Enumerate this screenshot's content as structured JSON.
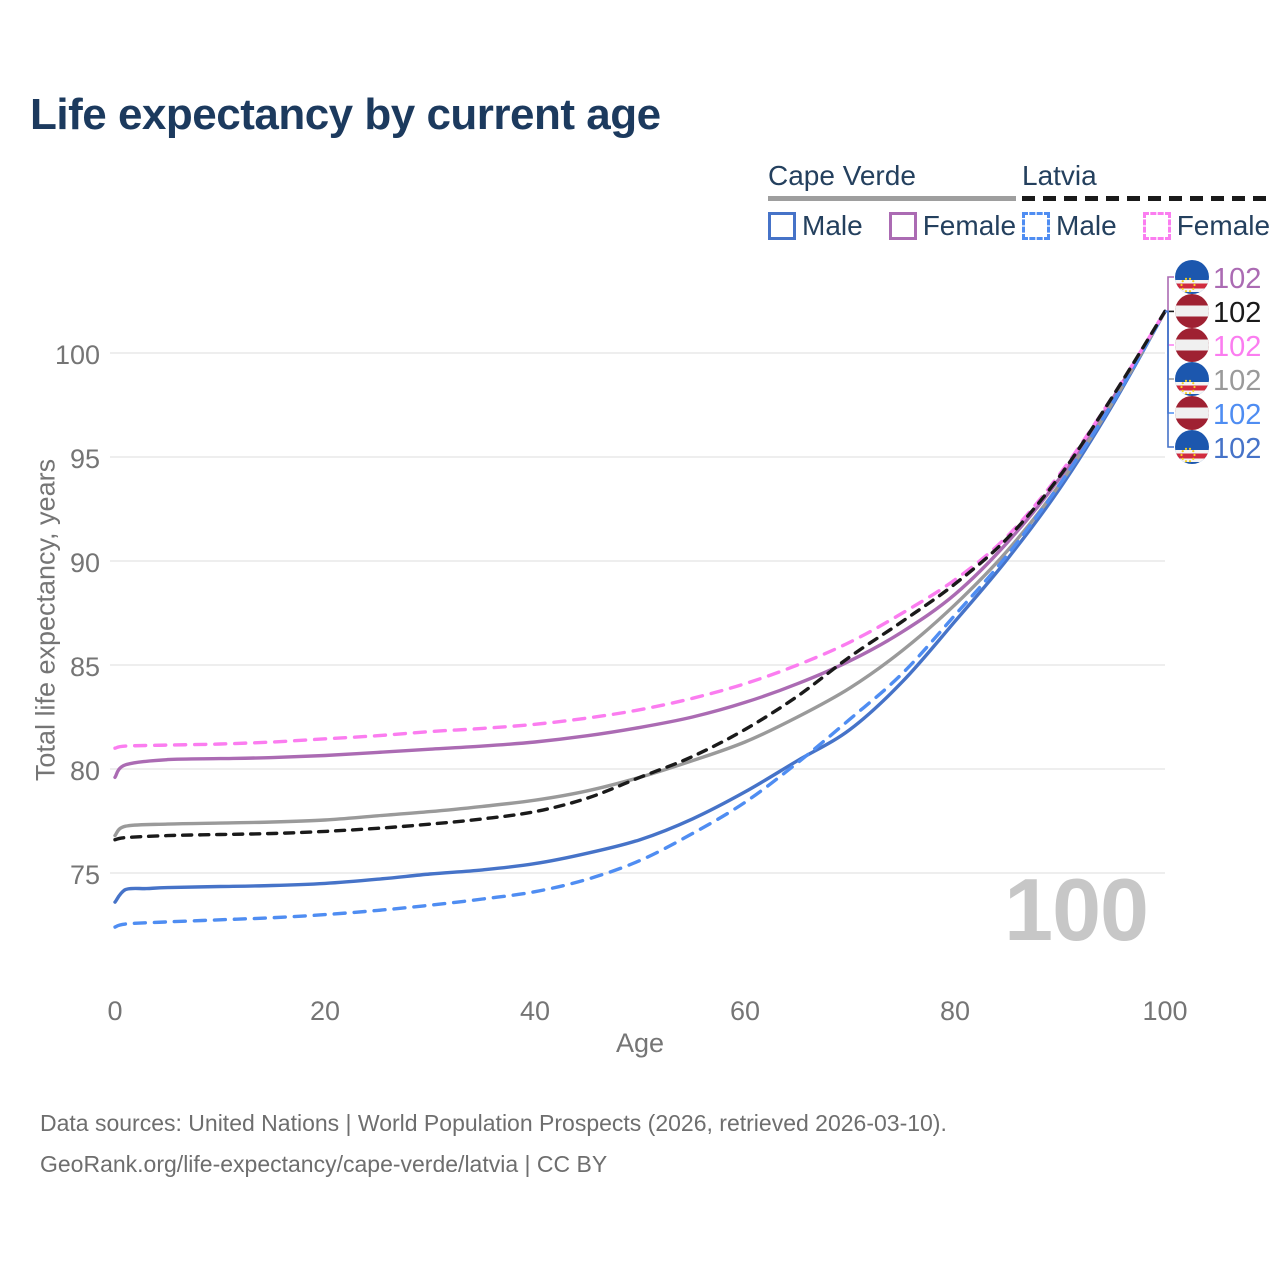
{
  "title": "Life expectancy by current age",
  "legend": {
    "groups": [
      {
        "name": "Cape Verde",
        "underline_style": "solid",
        "underline_color": "#9e9e9e",
        "items": [
          {
            "label": "Male",
            "color": "#4673c8",
            "dashed": false
          },
          {
            "label": "Female",
            "color": "#ab6bb3",
            "dashed": false
          }
        ]
      },
      {
        "name": "Latvia",
        "underline_style": "dashed",
        "underline_color": "#1a1a1a",
        "items": [
          {
            "label": "Male",
            "color": "#4f8df2",
            "dashed": true
          },
          {
            "label": "Female",
            "color": "#fb7df0",
            "dashed": true
          }
        ]
      }
    ]
  },
  "chart_data": {
    "type": "line",
    "title": "Life expectancy by current age",
    "xlabel": "Age",
    "ylabel": "Total life expectancy, years",
    "x_ticks": [
      0,
      20,
      40,
      60,
      80,
      100
    ],
    "y_ticks": [
      75,
      80,
      85,
      90,
      95,
      100
    ],
    "xlim": [
      0,
      100
    ],
    "ylim": [
      71.5,
      103.5
    ],
    "grid": "horizontal-only",
    "legend_position": "top-right",
    "watermark_age": "100",
    "series": [
      {
        "name": "Cape Verde Male",
        "country": "Cape Verde",
        "sex": "Male",
        "color": "#4673c8",
        "dashed": false,
        "points": [
          [
            0,
            73.6
          ],
          [
            1,
            74.2
          ],
          [
            3,
            74.25
          ],
          [
            5,
            74.3
          ],
          [
            10,
            74.35
          ],
          [
            15,
            74.4
          ],
          [
            20,
            74.5
          ],
          [
            25,
            74.7
          ],
          [
            30,
            74.95
          ],
          [
            35,
            75.15
          ],
          [
            40,
            75.45
          ],
          [
            45,
            75.95
          ],
          [
            50,
            76.6
          ],
          [
            55,
            77.6
          ],
          [
            60,
            78.9
          ],
          [
            65,
            80.4
          ],
          [
            70,
            81.9
          ],
          [
            75,
            84.2
          ],
          [
            80,
            87.1
          ],
          [
            85,
            90.1
          ],
          [
            90,
            93.5
          ],
          [
            95,
            97.5
          ],
          [
            100,
            102
          ]
        ]
      },
      {
        "name": "Cape Verde Female",
        "country": "Cape Verde",
        "sex": "Female",
        "color": "#ab6bb3",
        "dashed": false,
        "points": [
          [
            0,
            79.6
          ],
          [
            1,
            80.2
          ],
          [
            5,
            80.45
          ],
          [
            10,
            80.5
          ],
          [
            15,
            80.55
          ],
          [
            20,
            80.65
          ],
          [
            25,
            80.8
          ],
          [
            30,
            80.95
          ],
          [
            35,
            81.1
          ],
          [
            40,
            81.3
          ],
          [
            45,
            81.6
          ],
          [
            50,
            82.0
          ],
          [
            55,
            82.5
          ],
          [
            60,
            83.2
          ],
          [
            65,
            84.1
          ],
          [
            70,
            85.2
          ],
          [
            75,
            86.6
          ],
          [
            80,
            88.4
          ],
          [
            85,
            90.9
          ],
          [
            90,
            94.0
          ],
          [
            95,
            97.8
          ],
          [
            100,
            102
          ]
        ]
      },
      {
        "name": "Cape Verde",
        "country": "Cape Verde",
        "sex": "Total",
        "color": "#9a9a9a",
        "dashed": false,
        "points": [
          [
            0,
            76.8
          ],
          [
            1,
            77.25
          ],
          [
            5,
            77.35
          ],
          [
            10,
            77.4
          ],
          [
            15,
            77.45
          ],
          [
            20,
            77.55
          ],
          [
            25,
            77.75
          ],
          [
            30,
            77.95
          ],
          [
            35,
            78.2
          ],
          [
            40,
            78.5
          ],
          [
            45,
            78.95
          ],
          [
            50,
            79.6
          ],
          [
            55,
            80.4
          ],
          [
            60,
            81.3
          ],
          [
            65,
            82.5
          ],
          [
            70,
            83.9
          ],
          [
            75,
            85.7
          ],
          [
            80,
            87.9
          ],
          [
            85,
            90.5
          ],
          [
            90,
            93.7
          ],
          [
            95,
            97.6
          ],
          [
            100,
            102
          ]
        ]
      },
      {
        "name": "Latvia Male",
        "country": "Latvia",
        "sex": "Male",
        "color": "#4f8df2",
        "dashed": true,
        "points": [
          [
            0,
            72.4
          ],
          [
            1,
            72.55
          ],
          [
            5,
            72.65
          ],
          [
            10,
            72.75
          ],
          [
            15,
            72.85
          ],
          [
            20,
            73.0
          ],
          [
            25,
            73.2
          ],
          [
            30,
            73.45
          ],
          [
            35,
            73.75
          ],
          [
            40,
            74.1
          ],
          [
            45,
            74.7
          ],
          [
            50,
            75.6
          ],
          [
            55,
            76.9
          ],
          [
            60,
            78.4
          ],
          [
            65,
            80.3
          ],
          [
            70,
            82.4
          ],
          [
            75,
            84.6
          ],
          [
            80,
            87.4
          ],
          [
            85,
            90.3
          ],
          [
            90,
            93.7
          ],
          [
            95,
            97.6
          ],
          [
            100,
            102
          ]
        ]
      },
      {
        "name": "Latvia Female",
        "country": "Latvia",
        "sex": "Female",
        "color": "#fb7df0",
        "dashed": true,
        "points": [
          [
            0,
            81.0
          ],
          [
            1,
            81.1
          ],
          [
            5,
            81.15
          ],
          [
            10,
            81.2
          ],
          [
            15,
            81.3
          ],
          [
            20,
            81.45
          ],
          [
            25,
            81.6
          ],
          [
            30,
            81.8
          ],
          [
            35,
            81.95
          ],
          [
            40,
            82.15
          ],
          [
            45,
            82.45
          ],
          [
            50,
            82.85
          ],
          [
            55,
            83.4
          ],
          [
            60,
            84.1
          ],
          [
            65,
            85.0
          ],
          [
            70,
            86.1
          ],
          [
            75,
            87.5
          ],
          [
            80,
            89.1
          ],
          [
            85,
            91.2
          ],
          [
            90,
            94.2
          ],
          [
            95,
            97.9
          ],
          [
            100,
            102
          ]
        ]
      },
      {
        "name": "Latvia",
        "country": "Latvia",
        "sex": "Total",
        "color": "#1a1a1a",
        "dashed": true,
        "points": [
          [
            0,
            76.6
          ],
          [
            1,
            76.7
          ],
          [
            5,
            76.8
          ],
          [
            10,
            76.85
          ],
          [
            15,
            76.9
          ],
          [
            20,
            77.0
          ],
          [
            25,
            77.15
          ],
          [
            30,
            77.35
          ],
          [
            35,
            77.6
          ],
          [
            40,
            77.95
          ],
          [
            45,
            78.6
          ],
          [
            50,
            79.6
          ],
          [
            55,
            80.6
          ],
          [
            60,
            81.9
          ],
          [
            65,
            83.5
          ],
          [
            70,
            85.4
          ],
          [
            75,
            87.1
          ],
          [
            80,
            88.9
          ],
          [
            85,
            91.1
          ],
          [
            90,
            94.1
          ],
          [
            95,
            97.9
          ],
          [
            100,
            102
          ]
        ]
      }
    ],
    "end_labels": [
      {
        "series": "Cape Verde Female",
        "flag": "cape-verde",
        "color": "#ab6bb3",
        "value": "102"
      },
      {
        "series": "Latvia",
        "flag": "latvia",
        "color": "#1a1a1a",
        "value": "102"
      },
      {
        "series": "Latvia Female",
        "flag": "latvia",
        "color": "#fb7df0",
        "value": "102"
      },
      {
        "series": "Cape Verde",
        "flag": "cape-verde",
        "color": "#9a9a9a",
        "value": "102"
      },
      {
        "series": "Latvia Male",
        "flag": "latvia",
        "color": "#4f8df2",
        "value": "102"
      },
      {
        "series": "Cape Verde Male",
        "flag": "cape-verde",
        "color": "#4673c8",
        "value": "102"
      }
    ],
    "flag_colors": {
      "latvia_red": "#9f2132",
      "latvia_white": "#f0f0f0",
      "cape_verde_blue": "#1c57ae",
      "cape_verde_red": "#d12b3e",
      "cape_verde_white": "#f5f5f5",
      "cape_verde_star": "#f5d01f"
    },
    "axis_color": "#757575",
    "grid_color": "#e9e9e9"
  },
  "footer": {
    "line1": "Data sources: United Nations | World Population Prospects (2026, retrieved 2026-03-10).",
    "line2": "GeoRank.org/life-expectancy/cape-verde/latvia | CC BY"
  }
}
